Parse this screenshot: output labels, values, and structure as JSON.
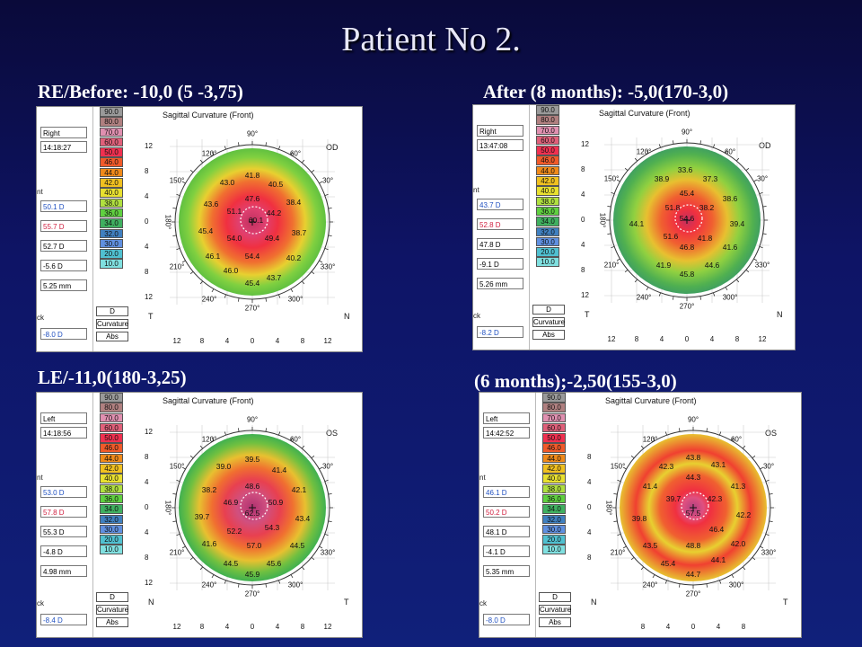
{
  "title": "Patient No 2.",
  "colors": {
    "background": "#0e1466",
    "title": "#e8e8f8",
    "caption": "#ffffff"
  },
  "scale_values": [
    "90.0",
    "80.0",
    "70.0",
    "60.0",
    "50.0",
    "46.0",
    "44.0",
    "42.0",
    "40.0",
    "38.0",
    "36.0",
    "34.0",
    "32.0",
    "30.0",
    "20.0",
    "10.0"
  ],
  "scale_colors": [
    "#9a9a9a",
    "#b08080",
    "#e090b0",
    "#e0607a",
    "#f03050",
    "#f05a2a",
    "#f08a1a",
    "#f0c020",
    "#e8e030",
    "#b0e040",
    "#60d040",
    "#40b060",
    "#4080c0",
    "#6090e0",
    "#50c0d0",
    "#80e0e0"
  ],
  "panels": [
    {
      "caption": "RE/Before: -10,0 (5 -3,75)",
      "header": "Sagittal Curvature (Front)",
      "eye": "OD",
      "side": "Right",
      "time": "14:18:27",
      "fields": [
        "50.1 D",
        "55.7 D",
        "52.7 D",
        "-5.6 D",
        "5.25 mm",
        "-8.0 D"
      ],
      "label_nt": [
        "T",
        "N"
      ],
      "values": [
        "41.8",
        "43.0",
        "40.5",
        "43.6",
        "47.6",
        "38.4",
        "51.1",
        "44.2",
        "45.4",
        "60.1",
        "38.7",
        "54.0",
        "49.4",
        "46.1",
        "54.4",
        "40.2",
        "46.0",
        "43.7",
        "45.4"
      ],
      "x_ticks": [
        "12",
        "8",
        "4",
        "0",
        "4",
        "8",
        "12"
      ],
      "y_ticks": [
        "12",
        "8",
        "4",
        "0",
        "4",
        "8",
        "12"
      ]
    },
    {
      "caption": "After (8 months): -5,0(170-3,0)",
      "header": "Sagittal Curvature (Front)",
      "eye": "OD",
      "side": "Right",
      "time": "13:47:08",
      "fields": [
        "43.7 D",
        "52.8 D",
        "47.8 D",
        "-9.1 D",
        "5.26 mm",
        "-8.2 D"
      ],
      "label_nt": [
        "T",
        "N"
      ],
      "values": [
        "33.6",
        "38.9",
        "37.3",
        "45.4",
        "38.6",
        "51.8",
        "38.2",
        "44.1",
        "54.6",
        "39.4",
        "51.6",
        "41.8",
        "46.8",
        "41.6",
        "41.9",
        "44.6",
        "45.8"
      ],
      "x_ticks": [
        "12",
        "8",
        "4",
        "0",
        "4",
        "8",
        "12"
      ],
      "y_ticks": [
        "12",
        "8",
        "4",
        "0",
        "4",
        "8",
        "12"
      ]
    },
    {
      "caption": "LE/-11,0(180-3,25)",
      "header": "Sagittal Curvature (Front)",
      "eye": "OS",
      "side": "Left",
      "time": "14:18:56",
      "fields": [
        "53.0 D",
        "57.8 D",
        "55.3 D",
        "-4.8 D",
        "4.98 mm",
        "-8.4 D"
      ],
      "label_nt": [
        "N",
        "T"
      ],
      "values": [
        "39.5",
        "39.0",
        "41.4",
        "38.2",
        "48.6",
        "42.1",
        "46.9",
        "50.9",
        "39.7",
        "62.5",
        "43.4",
        "52.2",
        "54.3",
        "41.6",
        "57.0",
        "44.5",
        "44.5",
        "45.6",
        "45.9"
      ],
      "x_ticks": [
        "12",
        "8",
        "4",
        "0",
        "4",
        "8",
        "12"
      ],
      "y_ticks": [
        "12",
        "8",
        "4",
        "0",
        "4",
        "8",
        "12"
      ]
    },
    {
      "caption": "(6 months);-2,50(155-3,0)",
      "header": "Sagittal Curvature (Front)",
      "eye": "OS",
      "side": "Left",
      "time": "14:42:52",
      "fields": [
        "46.1 D",
        "50.2 D",
        "48.1 D",
        "-4.1 D",
        "5.35 mm",
        "-8.0 D"
      ],
      "label_nt": [
        "N",
        "T"
      ],
      "values": [
        "43.8",
        "42.3",
        "43.1",
        "41.4",
        "44.3",
        "41.3",
        "39.7",
        "42.3",
        "39.8",
        "57.5",
        "42.2",
        "46.4",
        "43.5",
        "48.8",
        "42.0",
        "45.4",
        "44.1",
        "44.7"
      ],
      "x_ticks": [
        "8",
        "4",
        "0",
        "4",
        "8"
      ],
      "y_ticks": [
        "8",
        "4",
        "0",
        "4",
        "8"
      ]
    }
  ],
  "ui_labels": {
    "curvature": "Curvature",
    "abs": "Abs",
    "d": "D",
    "ck": "ck",
    "nt": "nt",
    "deg90": "90°",
    "deg270": "270°",
    "deg180": "180°",
    "deg120": "120°",
    "deg60": "60°",
    "deg150": "150°",
    "deg30": "30°",
    "deg210": "210°",
    "deg330": "330°",
    "deg240": "240°",
    "deg300": "300°"
  }
}
